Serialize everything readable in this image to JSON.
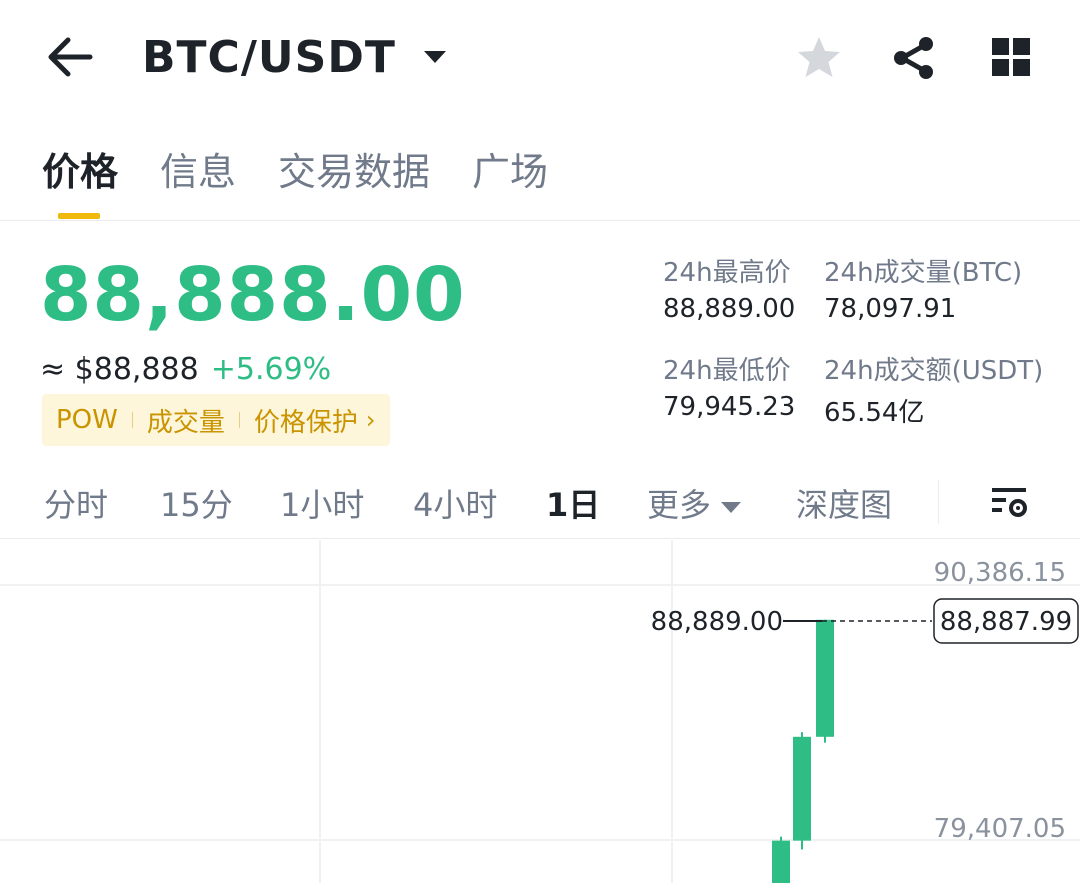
{
  "header": {
    "back_icon": "arrow-left-icon",
    "pair": "BTC/USDT",
    "favorite_icon": "star-icon",
    "share_icon": "share-icon",
    "more_icon": "grid-icon"
  },
  "tabs": [
    {
      "label": "价格",
      "active": true
    },
    {
      "label": "信息",
      "active": false
    },
    {
      "label": "交易数据",
      "active": false
    },
    {
      "label": "广场",
      "active": false
    }
  ],
  "price": {
    "last": "88,888.00",
    "usd": "≈ $88,888",
    "change_pct": "+5.69%",
    "color_up": "#2ebd85"
  },
  "tags": {
    "pow": "POW",
    "volume": "成交量",
    "protection": "价格保护",
    "chevron": "›"
  },
  "stats": {
    "high_label": "24h最高价",
    "high_value": "88,889.00",
    "vol_btc_label": "24h成交量(BTC)",
    "vol_btc_value": "78,097.91",
    "low_label": "24h最低价",
    "low_value": "79,945.23",
    "vol_usdt_label": "24h成交额(USDT)",
    "vol_usdt_value": "65.54亿"
  },
  "intervals": {
    "time": "分时",
    "m15": "15分",
    "h1": "1小时",
    "h4": "4小时",
    "d1": "1日",
    "more": "更多",
    "depth": "深度图",
    "settings_icon": "chart-settings-icon",
    "active": "1日"
  },
  "chart_data": {
    "type": "candlestick",
    "y_axis_labels": [
      "90,386.15",
      "79,407.05"
    ],
    "ylim": [
      79407.05,
      90386.15
    ],
    "high_marker": "88,889.00",
    "current_price_tag": "88,887.99",
    "candles": [
      {
        "open": 77300,
        "close": 79380,
        "high": 79550,
        "low": 76800
      },
      {
        "open": 79380,
        "close": 83850,
        "high": 84050,
        "low": 79000
      },
      {
        "open": 83850,
        "close": 88887.99,
        "high": 88889.0,
        "low": 83600
      }
    ],
    "up_color": "#2ebd85"
  }
}
